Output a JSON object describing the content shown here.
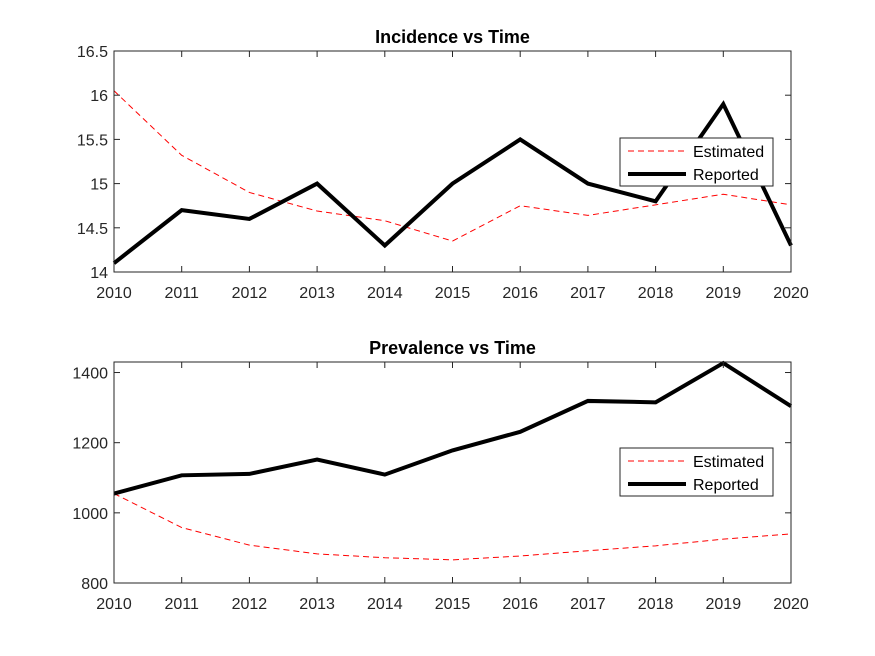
{
  "chart_data": [
    {
      "type": "line",
      "title": "Incidence vs Time",
      "xlabel": "",
      "ylabel": "",
      "x": [
        2010,
        2011,
        2012,
        2013,
        2014,
        2015,
        2016,
        2017,
        2018,
        2019,
        2020
      ],
      "xlim": [
        2010,
        2020
      ],
      "ylim": [
        14,
        16.5
      ],
      "xticks": [
        2010,
        2011,
        2012,
        2013,
        2014,
        2015,
        2016,
        2017,
        2018,
        2019,
        2020
      ],
      "yticks": [
        14,
        14.5,
        15,
        15.5,
        16,
        16.5
      ],
      "ytick_labels": [
        "14",
        "14.5",
        "15",
        "15.5",
        "16",
        "16.5"
      ],
      "grid": false,
      "legend_position": "right",
      "series": [
        {
          "name": "Estimated",
          "color": "#ff0000",
          "style": "dashed",
          "values": [
            16.05,
            15.32,
            14.9,
            14.69,
            14.58,
            14.35,
            14.75,
            14.64,
            14.76,
            14.88,
            14.76
          ]
        },
        {
          "name": "Reported",
          "color": "#000000",
          "style": "solid",
          "values": [
            14.1,
            14.7,
            14.6,
            15.0,
            14.3,
            15.0,
            15.5,
            15.0,
            14.8,
            15.9,
            14.3
          ]
        }
      ]
    },
    {
      "type": "line",
      "title": "Prevalence vs Time",
      "xlabel": "",
      "ylabel": "",
      "x": [
        2010,
        2011,
        2012,
        2013,
        2014,
        2015,
        2016,
        2017,
        2018,
        2019,
        2020
      ],
      "xlim": [
        2010,
        2020
      ],
      "ylim": [
        800,
        1430
      ],
      "xticks": [
        2010,
        2011,
        2012,
        2013,
        2014,
        2015,
        2016,
        2017,
        2018,
        2019,
        2020
      ],
      "yticks": [
        800,
        1000,
        1200,
        1400
      ],
      "ytick_labels": [
        "800",
        "1000",
        "1200",
        "1400"
      ],
      "grid": false,
      "legend_position": "right",
      "series": [
        {
          "name": "Estimated",
          "color": "#ff0000",
          "style": "dashed",
          "values": [
            1055,
            958,
            908,
            883,
            872,
            866,
            877,
            892,
            906,
            925,
            940
          ]
        },
        {
          "name": "Reported",
          "color": "#000000",
          "style": "solid",
          "values": [
            1055,
            1107,
            1111,
            1152,
            1109,
            1178,
            1231,
            1319,
            1315,
            1427,
            1304
          ]
        }
      ]
    }
  ]
}
